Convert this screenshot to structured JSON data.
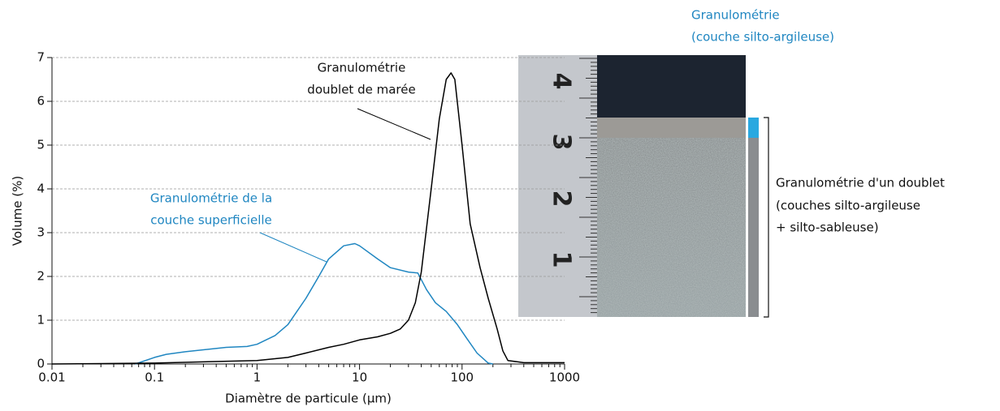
{
  "chart_data": {
    "type": "line",
    "x_label": "Diamètre de particule (µm)",
    "y_label": "Volume (%)",
    "xscale": "log",
    "xlim": [
      0.01,
      1000
    ],
    "xticks": [
      0.01,
      0.1,
      1,
      10,
      100,
      1000
    ],
    "ylim": [
      0,
      7
    ],
    "yticks": [
      0,
      1,
      2,
      3,
      4,
      5,
      6,
      7
    ],
    "grid": true,
    "series": [
      {
        "name": "Granulométrie de la couche superficielle",
        "color": "#1f86c1",
        "x": [
          0.065,
          0.1,
          0.13,
          0.2,
          0.5,
          0.8,
          1,
          1.5,
          2,
          3,
          4,
          5,
          7,
          9,
          10,
          15,
          20,
          30,
          37,
          45,
          55,
          70,
          90,
          110,
          140,
          180,
          200
        ],
        "values": [
          0,
          0.15,
          0.22,
          0.28,
          0.38,
          0.4,
          0.45,
          0.65,
          0.9,
          1.5,
          2.0,
          2.4,
          2.7,
          2.75,
          2.7,
          2.4,
          2.2,
          2.1,
          2.08,
          1.7,
          1.4,
          1.2,
          0.9,
          0.6,
          0.25,
          0.02,
          0
        ]
      },
      {
        "name": "Granulométrie doublet de marée",
        "color": "#000000",
        "x": [
          0.01,
          0.1,
          1,
          2,
          3,
          5,
          7,
          10,
          15,
          20,
          25,
          30,
          35,
          40,
          50,
          60,
          70,
          78,
          85,
          100,
          120,
          150,
          180,
          220,
          250,
          280,
          400,
          1000
        ],
        "values": [
          0,
          0.02,
          0.08,
          0.15,
          0.25,
          0.38,
          0.45,
          0.55,
          0.62,
          0.7,
          0.8,
          1.0,
          1.4,
          2.1,
          4.0,
          5.6,
          6.5,
          6.65,
          6.5,
          5.0,
          3.2,
          2.2,
          1.5,
          0.8,
          0.3,
          0.08,
          0.03,
          0.03
        ]
      }
    ],
    "annotations": {
      "doublet": [
        "Granulométrie",
        "doublet de marée"
      ],
      "superficielle": [
        "Granulométrie de la",
        "couche superficielle"
      ],
      "silto_argileuse": [
        "Granulométrie",
        "(couche silto-argileuse)"
      ],
      "doublet_photo": [
        "Granulométrie d'un doublet",
        "(couches silto-argileuse",
        "+ silto-sableuse)"
      ]
    },
    "inset": {
      "ruler_labels": [
        "1",
        "2",
        "3",
        "4"
      ]
    }
  }
}
